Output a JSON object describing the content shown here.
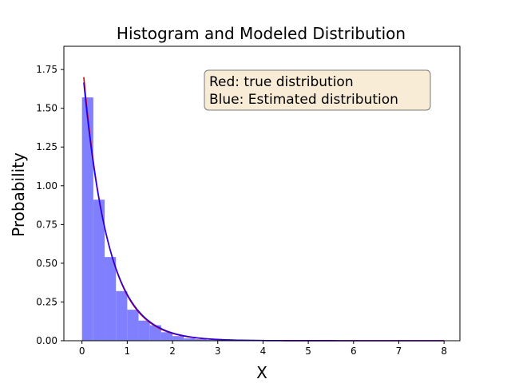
{
  "chart_data": {
    "type": "histogram",
    "title": "Histogram and Modeled Distribution",
    "xlabel": "X",
    "ylabel": "Probability",
    "xlim": [
      -0.4,
      8.35
    ],
    "ylim": [
      0,
      1.9
    ],
    "x_ticks": [
      0,
      1,
      2,
      3,
      4,
      5,
      6,
      7,
      8
    ],
    "y_ticks": [
      0.0,
      0.25,
      0.5,
      0.75,
      1.0,
      1.25,
      1.5,
      1.75
    ],
    "y_tick_labels": [
      "0.00",
      "0.25",
      "0.50",
      "0.75",
      "1.00",
      "1.25",
      "1.50",
      "1.75"
    ],
    "grid": false,
    "annotation": {
      "lines": [
        "Red: true distribution",
        "Blue: Estimated distribution"
      ],
      "position": "top-right",
      "background": "#f8ecd6"
    },
    "histogram": {
      "color": "#8080ff",
      "bin_edges": [
        0.0,
        0.25,
        0.5,
        0.75,
        1.0,
        1.25,
        1.5,
        1.75,
        2.0,
        2.25,
        2.5,
        2.75,
        3.0,
        3.25,
        3.5,
        3.75,
        4.0,
        4.25,
        4.5,
        4.75,
        5.0,
        5.25,
        5.5,
        5.75,
        6.0,
        6.25,
        6.5,
        6.75,
        7.0,
        7.25,
        7.5,
        7.75,
        8.0
      ],
      "values": [
        1.57,
        0.91,
        0.54,
        0.32,
        0.2,
        0.13,
        0.1,
        0.055,
        0.03,
        0.015,
        0.01,
        0.005,
        0.003,
        0.002,
        0.001,
        0.001,
        0.0005,
        0.0003,
        0.0002,
        0.0001,
        0.0001,
        0.0001,
        0.0,
        0.0,
        0.0,
        0.0,
        0.0,
        0.0,
        0.0,
        0.0,
        0.0,
        0.0
      ]
    },
    "series": [
      {
        "color": "#dd0000",
        "rate": 1.83,
        "x_range": [
          0.04,
          8.0
        ],
        "values_note": ""
      },
      {
        "color": "#2200ee",
        "rate": 1.79,
        "x_range": [
          0.04,
          8.0
        ],
        "values_note": ""
      }
    ]
  }
}
